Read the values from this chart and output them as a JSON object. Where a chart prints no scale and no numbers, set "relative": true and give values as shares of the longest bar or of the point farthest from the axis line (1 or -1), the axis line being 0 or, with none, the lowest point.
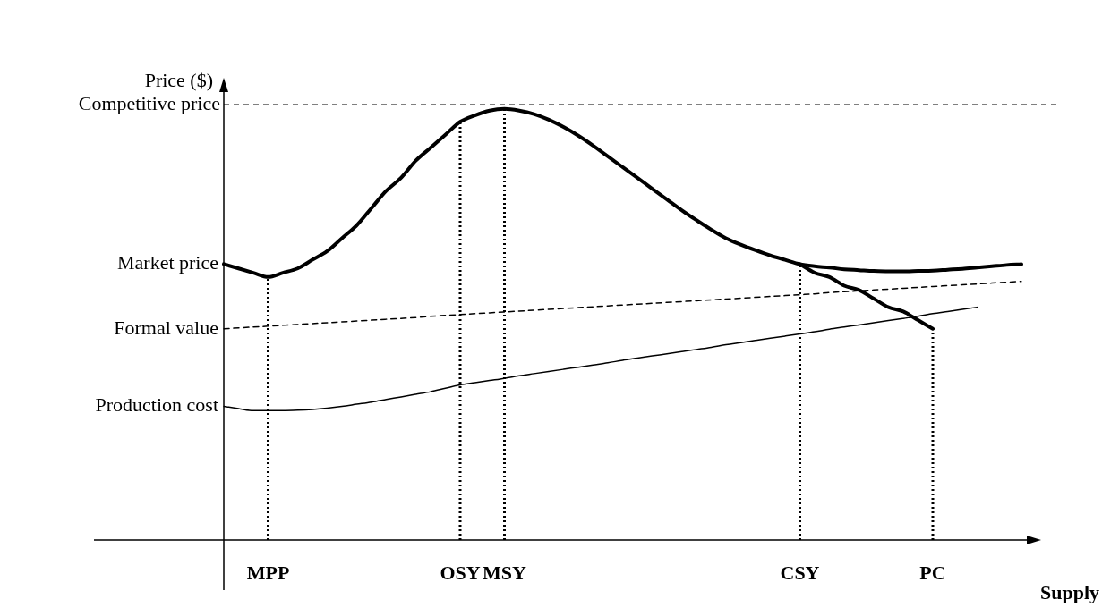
{
  "chart_data": {
    "type": "line",
    "relative": true,
    "xlabel": "Supply",
    "ylabel": "Price ($)",
    "legend": false,
    "marker": "none",
    "categories": [
      null,
      null,
      null,
      "MPP",
      null,
      null,
      null,
      null,
      null,
      null,
      null,
      null,
      null,
      null,
      null,
      null,
      "OSY",
      null,
      null,
      "MSY",
      null,
      null,
      null,
      null,
      null,
      null,
      null,
      null,
      null,
      null,
      null,
      null,
      null,
      null,
      null,
      null,
      null,
      null,
      null,
      "CSY",
      null,
      null,
      null,
      null,
      null,
      null,
      null,
      null,
      "PC",
      null,
      null,
      null,
      null,
      null,
      null
    ],
    "series": [
      {
        "name": "Market price",
        "color": "#000000",
        "line_style": "solid",
        "values": [
          0.64,
          0.63,
          0.62,
          0.61,
          0.62,
          0.63,
          0.65,
          0.67,
          0.7,
          0.73,
          0.77,
          0.81,
          0.84,
          0.88,
          0.91,
          0.94,
          0.97,
          0.985,
          0.996,
          1.0,
          0.996,
          0.988,
          0.975,
          0.958,
          0.938,
          0.915,
          0.89,
          0.865,
          0.84,
          0.815,
          0.79,
          0.765,
          0.742,
          0.72,
          0.7,
          0.685,
          0.672,
          0.66,
          0.65,
          0.64,
          0.635,
          0.632,
          0.628,
          0.626,
          0.624,
          0.623,
          0.623,
          0.624,
          0.625,
          0.627,
          0.629,
          0.632,
          0.635,
          0.638,
          0.64
        ]
      },
      {
        "color": "#000000",
        "line_style": "solid",
        "values": [
          null,
          null,
          null,
          null,
          null,
          null,
          null,
          null,
          null,
          null,
          null,
          null,
          null,
          null,
          null,
          null,
          null,
          null,
          null,
          null,
          null,
          null,
          null,
          null,
          null,
          null,
          null,
          null,
          null,
          null,
          null,
          null,
          null,
          null,
          null,
          null,
          null,
          null,
          null,
          0.64,
          0.62,
          0.61,
          0.59,
          0.58,
          0.56,
          0.54,
          0.53,
          0.51,
          0.49,
          null,
          null,
          null,
          null,
          null,
          null
        ]
      },
      {
        "name": "Formal value",
        "color": "#000000",
        "line_style": "dashed",
        "values": [
          0.49,
          0.492,
          0.494,
          0.496,
          0.498,
          0.5,
          0.502,
          0.504,
          0.506,
          0.508,
          0.51,
          0.512,
          0.514,
          0.516,
          0.519,
          0.521,
          0.523,
          0.525,
          0.527,
          0.529,
          0.531,
          0.533,
          0.535,
          0.537,
          0.539,
          0.541,
          0.543,
          0.545,
          0.547,
          0.549,
          0.551,
          0.553,
          0.555,
          0.557,
          0.559,
          0.561,
          0.563,
          0.565,
          0.567,
          0.569,
          0.571,
          0.574,
          0.576,
          0.578,
          0.58,
          0.582,
          0.584,
          0.586,
          0.588,
          0.59,
          0.592,
          0.594,
          0.596,
          0.598,
          0.6
        ]
      },
      {
        "name": "Production cost",
        "color": "#000000",
        "line_style": "solid",
        "values": [
          0.31,
          0.305,
          0.3,
          0.3,
          0.3,
          0.301,
          0.303,
          0.306,
          0.31,
          0.315,
          0.32,
          0.326,
          0.332,
          0.338,
          0.344,
          0.352,
          0.36,
          0.365,
          0.37,
          0.375,
          0.381,
          0.386,
          0.391,
          0.396,
          0.401,
          0.406,
          0.411,
          0.417,
          0.422,
          0.427,
          0.432,
          0.437,
          0.442,
          0.447,
          0.453,
          0.458,
          0.463,
          0.468,
          0.473,
          0.478,
          0.483,
          0.489,
          0.494,
          0.499,
          0.504,
          0.509,
          0.514,
          0.519,
          0.525,
          0.53,
          0.535,
          0.54,
          null,
          null,
          null
        ]
      }
    ],
    "ref_lines": [
      {
        "axis": "y",
        "value": 1.01,
        "label": "Competitive price",
        "color": "#000000",
        "line_style": "dashed"
      },
      {
        "axis": "x",
        "value": "MPP",
        "color": "#000000",
        "line_style": "dotted"
      },
      {
        "axis": "x",
        "value": "OSY",
        "color": "#000000",
        "line_style": "dotted"
      },
      {
        "axis": "x",
        "value": "MSY",
        "color": "#000000",
        "line_style": "dotted"
      },
      {
        "axis": "x",
        "value": "CSY",
        "color": "#000000",
        "line_style": "dotted"
      },
      {
        "axis": "x",
        "value": "PC",
        "color": "#000000",
        "line_style": "dotted"
      }
    ]
  }
}
